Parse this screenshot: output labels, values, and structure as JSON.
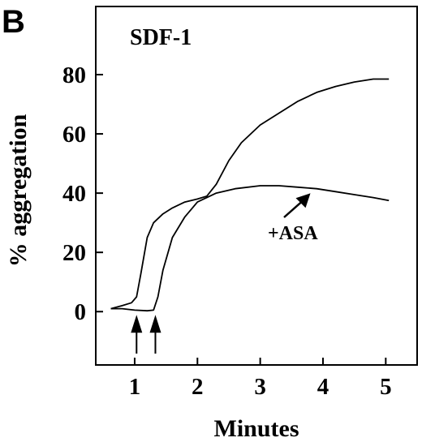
{
  "panel_label": "B",
  "chart_data": {
    "type": "line",
    "title": "SDF-1",
    "xlabel": "Minutes",
    "ylabel": "% aggregation",
    "xlim": [
      0.38,
      5.5
    ],
    "ylim": [
      -18,
      103
    ],
    "x_ticks": [
      1,
      2,
      3,
      4,
      5
    ],
    "y_ticks": [
      0,
      20,
      40,
      60,
      80
    ],
    "grid": false,
    "series": [
      {
        "x": [
          0.62,
          0.8,
          0.95,
          1.03,
          1.1,
          1.2,
          1.3,
          1.45,
          1.6,
          1.8,
          2.0,
          2.15,
          2.3,
          2.5,
          2.7,
          3.0,
          3.3,
          3.6,
          3.9,
          4.2,
          4.5,
          4.8,
          5.05
        ],
        "y": [
          1,
          2,
          3,
          5,
          13,
          25,
          30,
          33,
          35,
          37,
          38,
          39,
          43,
          51,
          57,
          63,
          67,
          71,
          74,
          76,
          77.5,
          78.5,
          78.5
        ]
      },
      {
        "x": [
          0.62,
          0.8,
          1.0,
          1.2,
          1.3,
          1.37,
          1.45,
          1.6,
          1.8,
          2.0,
          2.3,
          2.6,
          3.0,
          3.3,
          3.6,
          3.9,
          4.2,
          4.5,
          4.8,
          5.05
        ],
        "y": [
          1,
          1,
          0.5,
          0.3,
          0.5,
          5,
          14,
          25,
          32,
          37,
          40,
          41.5,
          42.5,
          42.5,
          42,
          41.5,
          40.5,
          39.5,
          38.5,
          37.5
        ]
      }
    ],
    "stimulus_arrows": [
      {
        "x": 1.03,
        "y": 0
      },
      {
        "x": 1.33,
        "y": 0
      }
    ],
    "annotations": [
      {
        "text": "+ASA",
        "x": 3.8,
        "y": 40.5
      }
    ]
  }
}
